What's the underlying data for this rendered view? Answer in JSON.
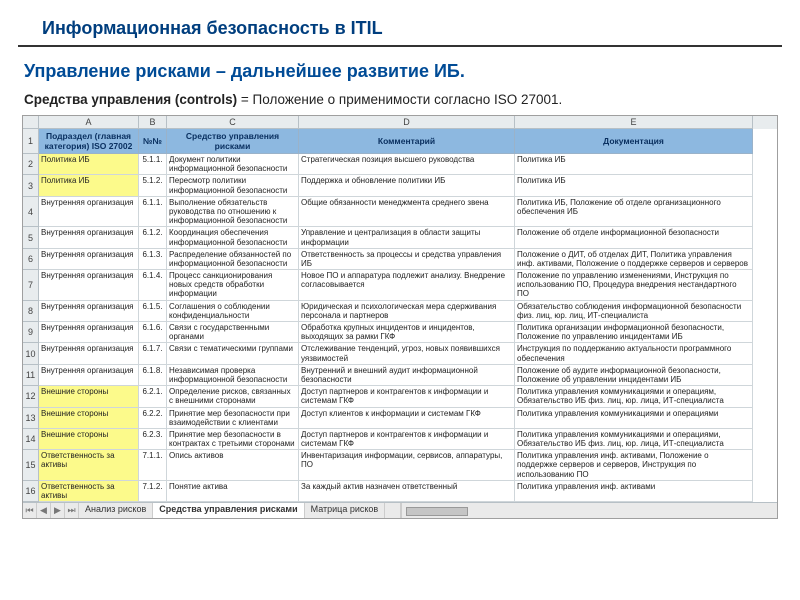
{
  "page": {
    "title": "Информационная безопасность в ITIL",
    "subheading": "Управление рисками – дальнейшее развитие ИБ.",
    "desc_bold": "Средства управления (controls)",
    "desc_rest": " = Положение о применимости согласно ISO 27001."
  },
  "spreadsheet": {
    "col_letters": [
      "",
      "A",
      "B",
      "C",
      "D",
      "E"
    ],
    "headers": {
      "A": "Подраздел (главная категория) ISO 27002",
      "B": "№№",
      "C": "Средство управления рисками",
      "D": "Комментарий",
      "E": "Документация"
    },
    "highlight_color": "#fcfa8b",
    "header_bg": "#8db8e0",
    "rows": [
      {
        "n": "2",
        "hl": true,
        "A": "Политика ИБ",
        "B": "5.1.1.",
        "C": "Документ политики информационной безопасности",
        "D": "Стратегическая позиция высшего руководства",
        "E": "Политика ИБ"
      },
      {
        "n": "3",
        "hl": true,
        "A": "Политика ИБ",
        "B": "5.1.2.",
        "C": "Пересмотр политики информационной безопасности",
        "D": "Поддержка и обновление политики ИБ",
        "E": "Политика ИБ"
      },
      {
        "n": "4",
        "hl": false,
        "A": "Внутренняя организация",
        "B": "6.1.1.",
        "C": "Выполнение обязательств руководства по отношению к информационной безопасности",
        "D": "Общие обязанности менеджмента среднего звена",
        "E": "Политика ИБ, Положение об отделе организационного обеспечения ИБ"
      },
      {
        "n": "5",
        "hl": false,
        "A": "Внутренняя организация",
        "B": "6.1.2.",
        "C": "Координация обеспечения информационной безопасности",
        "D": "Управление и централизация в области защиты информации",
        "E": "Положение об отделе информационной безопасности"
      },
      {
        "n": "6",
        "hl": false,
        "A": "Внутренняя организация",
        "B": "6.1.3.",
        "C": "Распределение обязанностей по информационной безопасности",
        "D": "Ответственность за процессы и средства управления ИБ",
        "E": "Положение о ДИТ, об отделах ДИТ, Политика управления инф. активами, Положение о поддержке серверов и серверов"
      },
      {
        "n": "7",
        "hl": false,
        "A": "Внутренняя организация",
        "B": "6.1.4.",
        "C": "Процесс санкционирования новых средств обработки информации",
        "D": "Новое ПО и аппаратура подлежит анализу. Внедрение согласовывается",
        "E": "Положение по управлению изменениями, Инструкция по использованию ПО, Процедура внедрения нестандартного ПО"
      },
      {
        "n": "8",
        "hl": false,
        "A": "Внутренняя организация",
        "B": "6.1.5.",
        "C": "Соглашения о соблюдении конфиденциальности",
        "D": "Юридическая и психологическая мера сдерживания персонала и партнеров",
        "E": "Обязательство соблюдения информационной безопасности физ. лиц, юр. лиц, ИТ-специалиста"
      },
      {
        "n": "9",
        "hl": false,
        "A": "Внутренняя организация",
        "B": "6.1.6.",
        "C": "Связи с государственными органами",
        "D": "Обработка крупных инцидентов и инцидентов, выходящих за рамки ГКФ",
        "E": "Политика организации информационной безопасности, Положение по управлению инцидентами ИБ"
      },
      {
        "n": "10",
        "hl": false,
        "A": "Внутренняя организация",
        "B": "6.1.7.",
        "C": "Связи с тематическими группами",
        "D": "Отслеживание тенденций, угроз, новых появившихся уязвимостей",
        "E": "Инструкция по поддержанию актуальности программного обеспечения"
      },
      {
        "n": "11",
        "hl": false,
        "A": "Внутренняя организация",
        "B": "6.1.8.",
        "C": "Независимая проверка информационной безопасности",
        "D": "Внутренний и внешний аудит информационной безопасности",
        "E": "Положение об аудите информационной безопасности, Положение об управлении инцидентами ИБ"
      },
      {
        "n": "12",
        "hl": true,
        "A": "Внешние стороны",
        "B": "6.2.1.",
        "C": "Определение рисков, связанных с внешними сторонами",
        "D": "Доступ партнеров и контрагентов к информации и системам ГКФ",
        "E": "Политика управления коммуникациями и операциям, Обязательство ИБ физ. лиц, юр. лица, ИТ-специалиста"
      },
      {
        "n": "13",
        "hl": true,
        "A": "Внешние стороны",
        "B": "6.2.2.",
        "C": "Принятие мер безопасности при взаимодействии с клиентами",
        "D": "Доступ клиентов к информации и системам ГКФ",
        "E": "Политика управления коммуникациями и операциями"
      },
      {
        "n": "14",
        "hl": true,
        "A": "Внешние стороны",
        "B": "6.2.3.",
        "C": "Принятие мер безопасности в контрактах с третьими сторонами",
        "D": "Доступ партнеров и контрагентов к информации и системам ГКФ",
        "E": "Политика управления коммуникациями и операциями, Обязательство ИБ физ. лиц, юр. лица, ИТ-специалиста"
      },
      {
        "n": "15",
        "hl": true,
        "A": "Ответственность за активы",
        "B": "7.1.1.",
        "C": "Опись активов",
        "D": "Инвентаризация информации, сервисов, аппаратуры, ПО",
        "E": "Политика управления инф. активами, Положение о поддержке серверов и серверов, Инструкция по использованию ПО"
      },
      {
        "n": "16",
        "hl": true,
        "A": "Ответственность за активы",
        "B": "7.1.2.",
        "C": "Понятие актива",
        "D": "За каждый актив назначен ответственный",
        "E": "Политика управления инф. активами"
      }
    ],
    "tabs": {
      "items": [
        "Анализ рисков",
        "Средства управления рисками",
        "Матрица рисков",
        ""
      ],
      "active_index": 1
    }
  }
}
